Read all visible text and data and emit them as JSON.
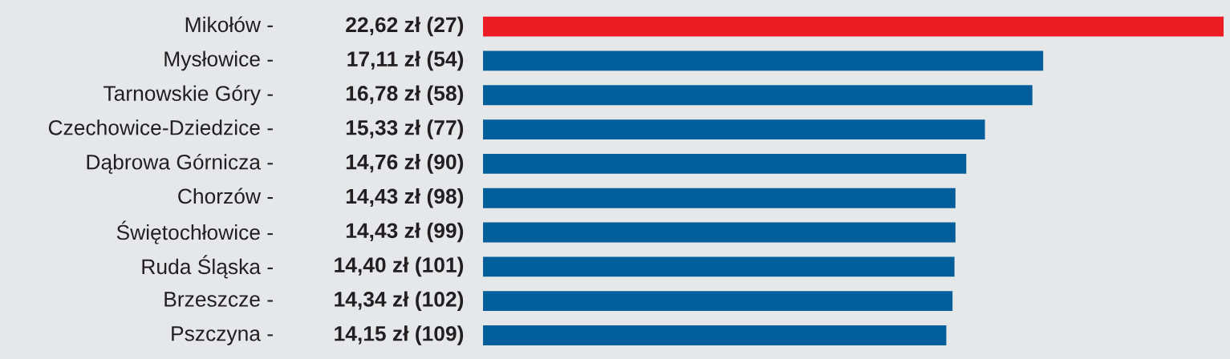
{
  "chart_data": {
    "type": "bar",
    "orientation": "horizontal",
    "categories": [
      "Mikołów -",
      "Mysłowice -",
      "Tarnowskie Góry -",
      "Czechowice-Dziedzice -",
      "Dąbrowa Górnicza -",
      "Chorzów -",
      "Świętochłowice -",
      "Ruda Śląska -",
      "Brzeszcze -",
      "Pszczyna -"
    ],
    "value_labels": [
      "22,62 zł (27)",
      "17,11 zł (54)",
      "16,78 zł (58)",
      "15,33 zł (77)",
      "14,76 zł (90)",
      "14,43 zł (98)",
      "14,43 zł (99)",
      "14,40 zł (101)",
      "14,34 zł (102)",
      "14,15 zł (109)"
    ],
    "values": [
      22.62,
      17.11,
      16.78,
      15.33,
      14.76,
      14.43,
      14.43,
      14.4,
      14.34,
      14.15
    ],
    "colors": [
      "#ed1c24",
      "#005f9a",
      "#005f9a",
      "#005f9a",
      "#005f9a",
      "#005f9a",
      "#005f9a",
      "#005f9a",
      "#005f9a",
      "#005f9a"
    ],
    "legend": false
  }
}
